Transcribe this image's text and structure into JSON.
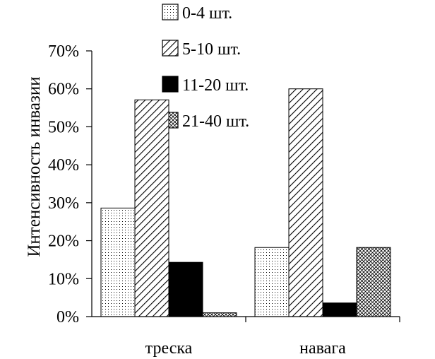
{
  "chart_data": {
    "type": "bar",
    "categories": [
      "треска",
      "навага"
    ],
    "ylabel": "Интенсивность инвазии",
    "ylim": [
      0,
      0.7
    ],
    "y_ticks": [
      "0%",
      "10%",
      "20%",
      "30%",
      "40%",
      "50%",
      "60%",
      "70%"
    ],
    "y_tick_values": [
      0,
      0.1,
      0.2,
      0.3,
      0.4,
      0.5,
      0.6,
      0.7
    ],
    "grid": false,
    "legend_position": "top-center",
    "series": [
      {
        "name": "0-4 шт.",
        "values": [
          0.286,
          0.182
        ],
        "pattern": "dots"
      },
      {
        "name": "5-10  шт.",
        "values": [
          0.571,
          0.6
        ],
        "pattern": "diagonal"
      },
      {
        "name": "11-20  шт.",
        "values": [
          0.143,
          0.036
        ],
        "pattern": "solid"
      },
      {
        "name": "21-40  шт.",
        "values": [
          0.01,
          0.182
        ],
        "pattern": "crosshatch"
      }
    ],
    "colors": {
      "axis": "#000000",
      "bar_edge": "#000000",
      "solid_fill": "#000000"
    }
  }
}
